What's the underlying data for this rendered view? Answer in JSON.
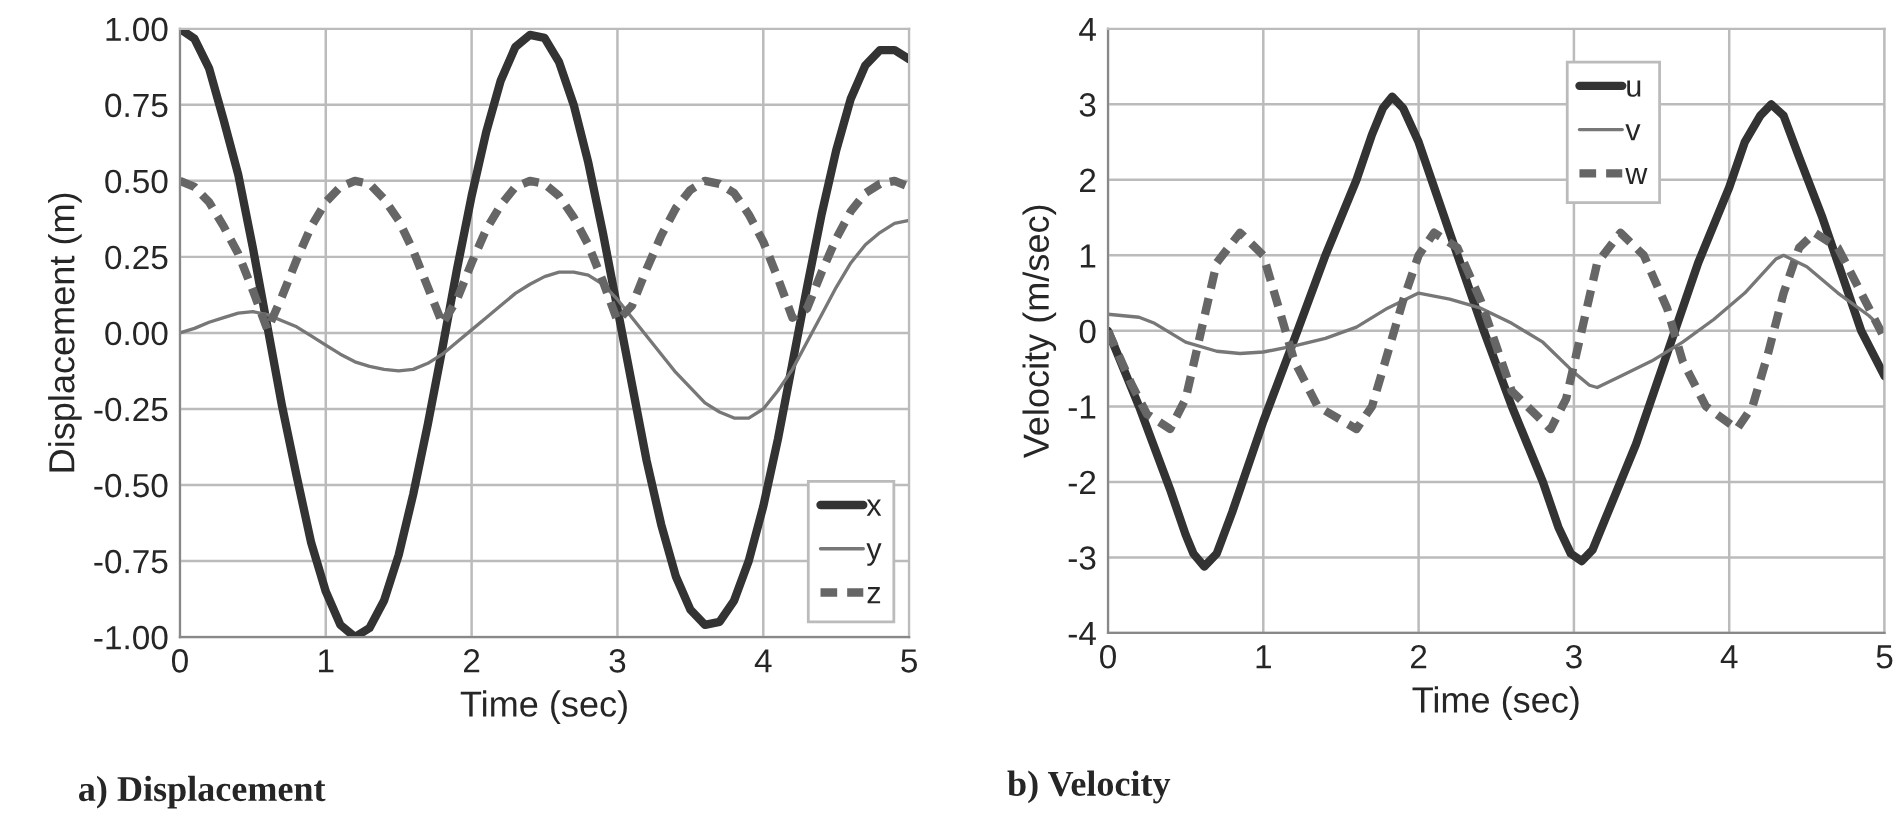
{
  "chart_data": [
    {
      "type": "line",
      "title": "a) Displacement",
      "xlabel": "Time (sec)",
      "ylabel": "Displacement (m)",
      "xlim": [
        0,
        5
      ],
      "xticks": [
        0,
        1,
        2,
        3,
        4,
        5
      ],
      "ylim": [
        -1,
        1
      ],
      "yticks": [
        {
          "value": -1,
          "label": "-1.00"
        },
        {
          "value": -0.75,
          "label": "-0.75"
        },
        {
          "value": -0.5,
          "label": "-0.50"
        },
        {
          "value": -0.25,
          "label": "-0.25"
        },
        {
          "value": 0,
          "label": "0.00"
        },
        {
          "value": 0.25,
          "label": "0.25"
        },
        {
          "value": 0.5,
          "label": "0.50"
        },
        {
          "value": 0.75,
          "label": "0.75"
        },
        {
          "value": 1,
          "label": "1.00"
        }
      ],
      "grid": true,
      "legend": "bottom right",
      "x": [
        0,
        0.1,
        0.2,
        0.3,
        0.4,
        0.5,
        0.6,
        0.7,
        0.8,
        0.9,
        1.0,
        1.1,
        1.2,
        1.3,
        1.4,
        1.5,
        1.6,
        1.7,
        1.8,
        1.9,
        2.0,
        2.1,
        2.2,
        2.3,
        2.4,
        2.5,
        2.6,
        2.7,
        2.8,
        2.9,
        3.0,
        3.1,
        3.2,
        3.3,
        3.4,
        3.5,
        3.6,
        3.7,
        3.8,
        3.9,
        4.0,
        4.1,
        4.2,
        4.3,
        4.4,
        4.5,
        4.6,
        4.7,
        4.8,
        4.9,
        5.0
      ],
      "series": [
        {
          "name": "x",
          "color": "#333333",
          "line_style": "solid",
          "values": [
            1,
            0.967,
            0.87,
            0.7,
            0.52,
            0.28,
            0.02,
            -0.24,
            -0.47,
            -0.69,
            -0.85,
            -0.96,
            -1.0,
            -0.97,
            -0.88,
            -0.73,
            -0.53,
            -0.3,
            -0.05,
            0.21,
            0.45,
            0.66,
            0.83,
            0.94,
            0.98,
            0.97,
            0.89,
            0.75,
            0.56,
            0.33,
            0.08,
            -0.17,
            -0.42,
            -0.63,
            -0.8,
            -0.91,
            -0.96,
            -0.95,
            -0.88,
            -0.75,
            -0.57,
            -0.35,
            -0.1,
            0.15,
            0.39,
            0.6,
            0.77,
            0.88,
            0.93,
            0.93,
            0.9
          ]
        },
        {
          "name": "y",
          "color": "#777777",
          "line_style": "solid",
          "values": [
            0,
            0.015,
            0.035,
            0.05,
            0.065,
            0.07,
            0.06,
            0.04,
            0.02,
            -0.01,
            -0.04,
            -0.07,
            -0.095,
            -0.11,
            -0.12,
            -0.125,
            -0.12,
            -0.1,
            -0.07,
            -0.03,
            0.01,
            0.05,
            0.09,
            0.13,
            0.16,
            0.185,
            0.2,
            0.2,
            0.19,
            0.16,
            0.11,
            0.05,
            -0.01,
            -0.07,
            -0.13,
            -0.18,
            -0.23,
            -0.26,
            -0.28,
            -0.28,
            -0.25,
            -0.19,
            -0.12,
            -0.03,
            0.06,
            0.15,
            0.23,
            0.29,
            0.33,
            0.36,
            0.37
          ]
        },
        {
          "name": "z",
          "color": "#666666",
          "line_style": "dashed",
          "values": [
            0.5,
            0.48,
            0.43,
            0.35,
            0.26,
            0.14,
            0.01,
            0.12,
            0.24,
            0.35,
            0.43,
            0.48,
            0.5,
            0.49,
            0.44,
            0.37,
            0.27,
            0.15,
            0.03,
            0.11,
            0.23,
            0.34,
            0.42,
            0.48,
            0.5,
            0.49,
            0.45,
            0.38,
            0.29,
            0.17,
            0.04,
            0.09,
            0.21,
            0.32,
            0.41,
            0.47,
            0.5,
            0.49,
            0.46,
            0.39,
            0.3,
            0.18,
            0.05,
            0.08,
            0.2,
            0.31,
            0.4,
            0.46,
            0.49,
            0.5,
            0.48
          ]
        }
      ]
    },
    {
      "type": "line",
      "title": "b) Velocity",
      "xlabel": "Time (sec)",
      "ylabel": "Velocity (m/sec)",
      "xlim": [
        0,
        5
      ],
      "xticks": [
        0,
        1,
        2,
        3,
        4,
        5
      ],
      "ylim": [
        -4,
        4
      ],
      "yticks": [
        -4,
        -3,
        -2,
        -1,
        0,
        1,
        2,
        3,
        4
      ],
      "grid": true,
      "legend": "top right",
      "series": [
        {
          "name": "u",
          "color": "#333333",
          "line_style": "solid",
          "x": [
            0,
            0.2,
            0.4,
            0.5,
            0.55,
            0.62,
            0.7,
            0.8,
            1.0,
            1.22,
            1.4,
            1.6,
            1.7,
            1.77,
            1.83,
            1.9,
            2.0,
            2.2,
            2.42,
            2.6,
            2.8,
            2.9,
            2.98,
            3.05,
            3.12,
            3.2,
            3.4,
            3.65,
            3.8,
            4.0,
            4.1,
            4.2,
            4.27,
            4.35,
            4.45,
            4.6,
            4.85,
            5.0
          ],
          "values": [
            0,
            -1.0,
            -2.1,
            -2.7,
            -2.95,
            -3.12,
            -2.95,
            -2.4,
            -1.2,
            0,
            1.0,
            2.0,
            2.6,
            2.95,
            3.1,
            2.95,
            2.5,
            1.3,
            0,
            -1.0,
            -2.0,
            -2.6,
            -2.95,
            -3.05,
            -2.9,
            -2.5,
            -1.5,
            0,
            0.9,
            1.9,
            2.5,
            2.85,
            3.0,
            2.85,
            2.3,
            1.5,
            0,
            -0.6
          ]
        },
        {
          "name": "v",
          "color": "#777777",
          "line_style": "solid",
          "x": [
            0,
            0.2,
            0.3,
            0.5,
            0.7,
            0.85,
            1.0,
            1.2,
            1.4,
            1.6,
            1.8,
            2.0,
            2.2,
            2.4,
            2.6,
            2.8,
            3.0,
            3.1,
            3.15,
            3.3,
            3.5,
            3.7,
            3.9,
            4.1,
            4.3,
            4.35,
            4.5,
            4.7,
            4.9,
            5.0
          ],
          "values": [
            0.22,
            0.18,
            0.1,
            -0.15,
            -0.27,
            -0.3,
            -0.28,
            -0.2,
            -0.1,
            0.05,
            0.3,
            0.5,
            0.42,
            0.3,
            0.1,
            -0.15,
            -0.55,
            -0.72,
            -0.75,
            -0.6,
            -0.4,
            -0.15,
            0.15,
            0.5,
            0.95,
            1.0,
            0.85,
            0.5,
            0.2,
            0.0
          ]
        },
        {
          "name": "w",
          "color": "#666666",
          "line_style": "dashed",
          "x": [
            0,
            0.15,
            0.25,
            0.4,
            0.5,
            0.6,
            0.7,
            0.85,
            1.0,
            1.1,
            1.2,
            1.35,
            1.6,
            1.7,
            1.8,
            1.9,
            2.0,
            2.1,
            2.25,
            2.4,
            2.5,
            2.6,
            2.85,
            2.95,
            3.05,
            3.15,
            3.3,
            3.45,
            3.6,
            3.7,
            3.85,
            4.05,
            4.15,
            4.25,
            4.35,
            4.45,
            4.55,
            4.7,
            4.85,
            5.0
          ],
          "values": [
            0,
            -0.7,
            -1.1,
            -1.3,
            -0.9,
            0,
            0.9,
            1.3,
            1.0,
            0.3,
            -0.4,
            -1.0,
            -1.3,
            -1.0,
            -0.3,
            0.4,
            1.0,
            1.3,
            1.1,
            0.4,
            -0.2,
            -0.8,
            -1.3,
            -0.9,
            0,
            0.9,
            1.3,
            1.0,
            0.3,
            -0.4,
            -1.0,
            -1.3,
            -1.0,
            -0.3,
            0.5,
            1.1,
            1.3,
            1.1,
            0.5,
            -0.1
          ]
        }
      ]
    }
  ]
}
